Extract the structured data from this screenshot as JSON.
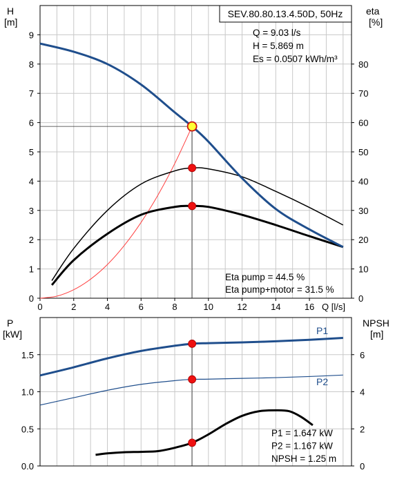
{
  "chart_data": [
    {
      "type": "line",
      "title": "SEV.80.80.13.4.50D, 50Hz",
      "xlabel": "Q [l/s]",
      "ylabel_left": "H\n[m]",
      "ylabel_right": "eta\n[%]",
      "xlim": [
        0,
        18.5
      ],
      "ylim_left": [
        0,
        10
      ],
      "ylim_right": [
        0,
        100
      ],
      "x_ticks": [
        0,
        2,
        4,
        6,
        8,
        10,
        12,
        14,
        16
      ],
      "x_tick_last_label": "Q [l/s]",
      "y_left_ticks": [
        0,
        1,
        2,
        3,
        4,
        5,
        6,
        7,
        8,
        9
      ],
      "y_right_ticks": [
        0,
        10,
        20,
        30,
        40,
        50,
        60,
        70,
        80
      ],
      "grid": true,
      "info_lines": [
        "Q = 9.03 l/s",
        "H = 5.869 m",
        "Es = 0.0507 kWh/m³"
      ],
      "eff_lines": [
        "Eta pump = 44.5 %",
        "Eta pump+motor = 31.5 %"
      ],
      "duty_point": {
        "q": 9.03,
        "h": 5.869,
        "eta_pump": 44.5,
        "eta_total": 31.5
      },
      "series": [
        {
          "color": "#1f4e8c",
          "width": 3,
          "axis": "left",
          "x": [
            0,
            2,
            4,
            6,
            8,
            9.03,
            10,
            12,
            14,
            16,
            18
          ],
          "y": [
            8.7,
            8.42,
            8.0,
            7.3,
            6.35,
            5.869,
            5.35,
            4.1,
            3.05,
            2.35,
            1.75
          ]
        },
        {
          "color": "#000000",
          "width": 1.5,
          "axis": "right",
          "x": [
            0.7,
            2,
            4,
            6,
            8,
            9.03,
            10,
            12,
            14,
            16,
            18
          ],
          "y": [
            6,
            17,
            30,
            39,
            43.5,
            44.5,
            44.2,
            41.5,
            36.5,
            31.0,
            25
          ]
        },
        {
          "color": "#000000",
          "width": 3,
          "axis": "right",
          "x": [
            0.7,
            2,
            4,
            6,
            8,
            9.03,
            10,
            12,
            14,
            16,
            18
          ],
          "y": [
            4.5,
            13,
            22,
            28.5,
            31.2,
            31.5,
            31.2,
            28.5,
            25,
            21.2,
            17.5
          ]
        },
        {
          "color": "#ff4040",
          "width": 1,
          "axis": "left",
          "x": [
            0,
            1,
            2,
            3,
            4,
            5,
            6,
            7,
            8,
            9.03
          ],
          "y": [
            0,
            0.07,
            0.29,
            0.65,
            1.15,
            1.8,
            2.59,
            3.52,
            4.6,
            5.869
          ]
        }
      ],
      "markers": [
        {
          "x": 9.03,
          "y": 5.869,
          "axis": "left",
          "style": "duty"
        },
        {
          "x": 9.03,
          "y": 44.5,
          "axis": "right",
          "style": "red"
        },
        {
          "x": 9.03,
          "y": 31.5,
          "axis": "right",
          "style": "red"
        }
      ]
    },
    {
      "type": "line",
      "xlim": [
        0,
        18.5
      ],
      "ylabel_left": "P\n[kW]",
      "ylabel_right": "NPSH\n[m]",
      "ylim_left": [
        0,
        2.0
      ],
      "ylim_right": [
        0,
        8
      ],
      "y_left_ticks": [
        0.0,
        0.5,
        1.0,
        1.5
      ],
      "y_left_tick_labels": [
        "0.0",
        "0.5",
        "1.0",
        "1.5"
      ],
      "y_right_ticks": [
        0,
        2,
        4,
        6
      ],
      "grid": true,
      "info_lines": [
        "P1 = 1.647 kW",
        "P2 = 1.167 kW",
        "NPSH = 1.25 m"
      ],
      "series": [
        {
          "name": "P1",
          "color": "#1f4e8c",
          "width": 3,
          "axis": "left",
          "x": [
            0,
            2,
            4,
            6,
            8,
            9.03,
            10,
            12,
            14,
            16,
            18
          ],
          "y": [
            1.22,
            1.33,
            1.45,
            1.55,
            1.62,
            1.647,
            1.655,
            1.665,
            1.68,
            1.7,
            1.725
          ]
        },
        {
          "name": "P2",
          "color": "#1f4e8c",
          "width": 1.2,
          "axis": "left",
          "x": [
            0,
            2,
            4,
            6,
            8,
            9.03,
            10,
            12,
            14,
            16,
            18
          ],
          "y": [
            0.82,
            0.92,
            1.02,
            1.1,
            1.15,
            1.167,
            1.17,
            1.18,
            1.19,
            1.205,
            1.225
          ]
        },
        {
          "color": "#000000",
          "width": 3,
          "axis": "right",
          "x": [
            3.3,
            4,
            5,
            6,
            7,
            8,
            9.03,
            10,
            11,
            12,
            13,
            14,
            14.8,
            15.5,
            16.2
          ],
          "y": [
            0.6,
            0.68,
            0.74,
            0.76,
            0.8,
            0.98,
            1.25,
            1.7,
            2.25,
            2.7,
            2.95,
            3.0,
            2.95,
            2.65,
            2.2
          ]
        }
      ],
      "markers": [
        {
          "x": 9.03,
          "y": 1.647,
          "axis": "left",
          "style": "red"
        },
        {
          "x": 9.03,
          "y": 1.167,
          "axis": "left",
          "style": "red"
        },
        {
          "x": 9.03,
          "y": 1.25,
          "axis": "right",
          "style": "red"
        }
      ]
    }
  ]
}
